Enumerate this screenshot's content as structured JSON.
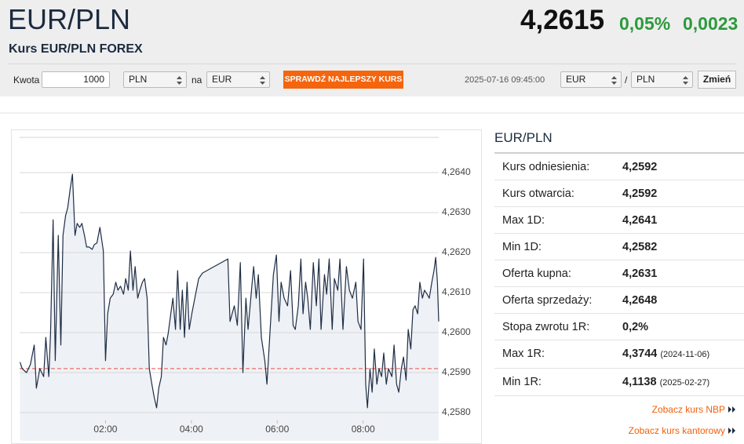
{
  "header": {
    "title": "EUR/PLN",
    "subtitle": "Kurs EUR/PLN FOREX"
  },
  "quote": {
    "price": "4,2615",
    "change_pct": "0,05%",
    "change": "0,0023"
  },
  "converter": {
    "amount_label": "Kwota",
    "amount": "1000",
    "from": "PLN",
    "to_label": "na",
    "to": "EUR",
    "button": "SPRAWDŹ NAJLEPSZY KURS",
    "timestamp": "2025-07-16 09:45:00",
    "pair_base": "EUR",
    "pair_sep": "/",
    "pair_quote": "PLN",
    "change_button": "Zmień"
  },
  "chart_data": {
    "type": "line",
    "x": [
      0.01,
      0.06,
      0.16,
      0.25,
      0.34,
      0.39,
      0.47,
      0.56,
      0.61,
      0.68,
      0.72,
      0.78,
      0.83,
      0.9,
      0.96,
      1.01,
      1.07,
      1.12,
      1.18,
      1.23,
      1.29,
      1.34,
      1.4,
      1.45,
      1.51,
      1.56,
      1.62,
      1.69,
      1.74,
      1.8,
      1.87,
      1.95,
      2.0,
      2.05,
      2.11,
      2.18,
      2.24,
      2.29,
      2.35,
      2.42,
      2.47,
      2.53,
      2.58,
      2.64,
      2.69,
      2.75,
      2.8,
      2.86,
      2.91,
      2.97,
      3.02,
      3.08,
      3.13,
      3.19,
      3.24,
      3.3,
      3.35,
      3.41,
      3.46,
      3.52,
      3.57,
      3.63,
      3.68,
      3.74,
      3.79,
      3.84,
      3.9,
      3.95,
      4.01,
      4.08,
      4.17,
      4.26,
      4.85,
      4.9,
      5.0,
      5.07,
      5.14,
      5.2,
      5.27,
      5.32,
      5.4,
      5.45,
      5.51,
      5.56,
      5.63,
      5.71,
      5.76,
      5.84,
      5.91,
      5.98,
      6.04,
      6.09,
      6.16,
      6.24,
      6.31,
      6.37,
      6.42,
      6.49,
      6.55,
      6.6,
      6.66,
      6.71,
      6.77,
      6.84,
      6.91,
      6.97,
      7.02,
      7.1,
      7.15,
      7.21,
      7.28,
      7.33,
      7.41,
      7.46,
      7.53,
      7.61,
      7.68,
      7.75,
      7.83,
      7.88,
      7.95,
      8.01,
      8.06,
      8.1,
      8.16,
      8.21,
      8.26,
      8.32,
      8.37,
      8.43,
      8.48,
      8.54,
      8.59,
      8.67,
      8.72,
      8.78,
      8.83,
      8.89,
      8.94,
      9.0,
      9.05,
      9.11,
      9.16,
      9.21,
      9.27,
      9.32,
      9.38,
      9.43,
      9.49,
      9.54,
      9.6,
      9.65,
      9.69,
      9.73,
      9.76
    ],
    "series": [
      {
        "color": "#1f2d45",
        "values": [
          4.25926,
          4.2591,
          4.259,
          4.2592,
          4.25969,
          4.25861,
          4.2591,
          4.2589,
          4.25988,
          4.2589,
          4.25998,
          4.26282,
          4.2593,
          4.26243,
          4.25969,
          4.26243,
          4.26292,
          4.26312,
          4.26361,
          4.26396,
          4.26243,
          4.26273,
          4.26263,
          4.26273,
          4.26243,
          4.26214,
          4.26214,
          4.26208,
          4.2622,
          4.26224,
          4.26263,
          4.26204,
          4.2593,
          4.26047,
          4.26086,
          4.26096,
          4.26126,
          4.26106,
          4.26116,
          4.26096,
          4.26135,
          4.26106,
          4.26204,
          4.26106,
          4.26165,
          4.26086,
          4.26106,
          4.26126,
          4.26135,
          4.26086,
          4.2591,
          4.25871,
          4.25841,
          4.25812,
          4.25861,
          4.2589,
          4.25988,
          4.25969,
          4.25998,
          4.26047,
          4.26086,
          4.26008,
          4.26155,
          4.26008,
          4.26106,
          4.25988,
          4.26126,
          4.26008,
          4.26047,
          4.26086,
          4.26135,
          4.26149,
          4.26184,
          4.26028,
          4.26067,
          4.26018,
          4.26175,
          4.259,
          4.26086,
          4.26008,
          4.26106,
          4.26165,
          4.26086,
          4.26145,
          4.25988,
          4.2593,
          4.25871,
          4.26018,
          4.26145,
          4.26194,
          4.26028,
          4.26126,
          4.26086,
          4.26067,
          4.26155,
          4.26018,
          4.26008,
          4.26067,
          4.26184,
          4.26047,
          4.26126,
          4.26086,
          4.26008,
          4.26175,
          4.26067,
          4.26184,
          4.26008,
          4.26145,
          4.26096,
          4.26184,
          4.26008,
          4.26135,
          4.26106,
          4.26184,
          4.26008,
          4.26165,
          4.26106,
          4.26086,
          4.26126,
          4.26028,
          4.26008,
          4.26184,
          4.25871,
          4.25812,
          4.2591,
          4.25851,
          4.25959,
          4.25871,
          4.2591,
          4.2589,
          4.25949,
          4.25871,
          4.2591,
          4.2589,
          4.25969,
          4.25871,
          4.25851,
          4.2591,
          4.25939,
          4.25881,
          4.26008,
          4.25959,
          4.26057,
          4.26067,
          4.26047,
          4.26126,
          4.26086,
          4.26106,
          4.26096,
          4.26086,
          4.26126,
          4.26155,
          4.26188,
          4.26126,
          4.26028
        ]
      }
    ],
    "xlim": [
      0,
      9.76
    ],
    "ylim": [
      4.2573,
      4.2649
    ],
    "xticks": [
      {
        "value": 2,
        "label": "02:00"
      },
      {
        "value": 4,
        "label": "04:00"
      },
      {
        "value": 6,
        "label": "06:00"
      },
      {
        "value": 8,
        "label": "08:00"
      }
    ],
    "yticks": [
      {
        "value": 4.258,
        "label": "4,2580"
      },
      {
        "value": 4.259,
        "label": "4,2590"
      },
      {
        "value": 4.26,
        "label": "4,2600"
      },
      {
        "value": 4.261,
        "label": "4,2610"
      },
      {
        "value": 4.262,
        "label": "4,2620"
      },
      {
        "value": 4.263,
        "label": "4,2630"
      },
      {
        "value": 4.264,
        "label": "4,2640"
      }
    ],
    "reference_line": 4.2591,
    "reference_color": "#e8524a",
    "grid": true
  },
  "stats": {
    "title": "EUR/PLN",
    "rows": [
      {
        "label": "Kurs odniesienia:",
        "value": "4,2592"
      },
      {
        "label": "Kurs otwarcia:",
        "value": "4,2592"
      },
      {
        "label": "Max 1D:",
        "value": "4,2641"
      },
      {
        "label": "Min 1D:",
        "value": "4,2582"
      },
      {
        "label": "Oferta kupna:",
        "value": "4,2631"
      },
      {
        "label": "Oferta sprzedaży:",
        "value": "4,2648"
      },
      {
        "label": "Stopa zwrotu 1R:",
        "value": "0,2%"
      },
      {
        "label": "Max 1R:",
        "value": "4,3744",
        "date": "(2024-11-06)"
      },
      {
        "label": "Min 1R:",
        "value": "4,1138",
        "date": "(2025-02-27)"
      }
    ]
  },
  "links": [
    "Zobacz kurs NBP",
    "Zobacz kurs kantorowy"
  ]
}
